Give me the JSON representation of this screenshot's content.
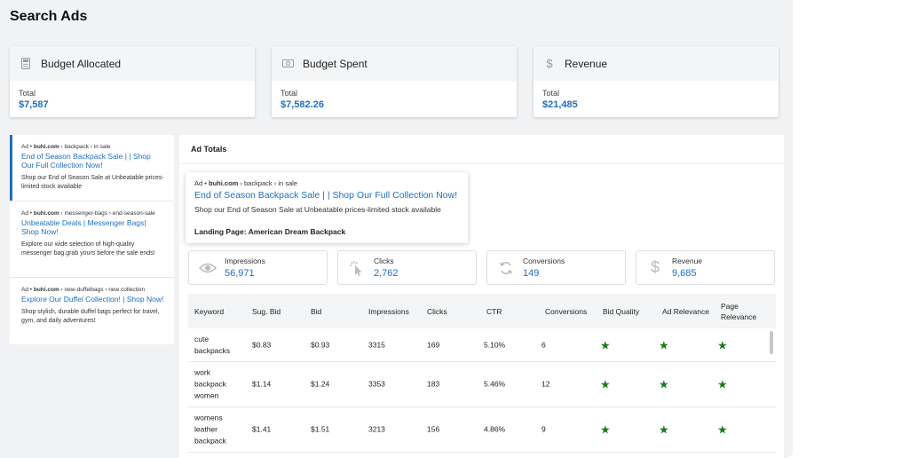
{
  "page": {
    "title": "Search Ads"
  },
  "stats": [
    {
      "icon": "calculator-icon",
      "label": "Budget Allocated",
      "sub": "Total",
      "value": "$7,587"
    },
    {
      "icon": "money-icon",
      "label": "Budget Spent",
      "sub": "Total",
      "value": "$7,582.26"
    },
    {
      "icon": "dollar-icon",
      "label": "Revenue",
      "sub": "Total",
      "value": "$21,485"
    }
  ],
  "ads": [
    {
      "ad": "Ad •",
      "domain": "buhi.com",
      "path": " › backpack › in sale",
      "headline": "End of Season Backpack Sale | | Shop Our Full Collection Now!",
      "desc": "Shop our End of Season Sale at Unbeatable prices-limited stock available"
    },
    {
      "ad": "Ad •",
      "domain": "buhi.com",
      "path": " › messenger-bags › end-season-sale",
      "headline": "Unbeatable Deals | Messenger Bags| Shop Now!",
      "desc": "Explore our wide selection of high-quality messenger bag.grab yours before the sale ends!"
    },
    {
      "ad": "Ad •",
      "domain": "buhi.com",
      "path": " › new-duffelbags › new collection",
      "headline": "Explore Our Duffel Collection! | Shop Now!",
      "desc": "Shop stylish, durable duffel bags perfect for travel, gym, and daily adventures!"
    }
  ],
  "totals": {
    "title": "Ad Totals",
    "preview": {
      "ad": "Ad •",
      "domain": "buhi.com",
      "path": " › backpack › in sale",
      "headline": "End of Season Backpack Sale | | Shop Our Full Collection Now!",
      "desc": "Shop our End of Season Sale at Unbeatable prices-limited stock available",
      "landing": "Landing Page: American Dream Backpack"
    },
    "metrics": [
      {
        "icon": "eye-icon",
        "label": "Impressions",
        "value": "56,971"
      },
      {
        "icon": "cursor-click-icon",
        "label": "Clicks",
        "value": "2,762"
      },
      {
        "icon": "refresh-icon",
        "label": "Conversions",
        "value": "149"
      },
      {
        "icon": "dollar-icon",
        "label": "Revenue",
        "value": "9,685"
      }
    ]
  },
  "table": {
    "headers": [
      "Keyword",
      "Sug. Bid",
      "Bid",
      "Impressions",
      "Clicks",
      "CTR",
      "Conversions",
      "Bid Quality",
      "Ad Relevance",
      "Page Relevance"
    ],
    "star_color": "#1a7a1a",
    "rows": [
      {
        "keyword": "cute backpacks",
        "sug_bid": "$0.83",
        "bid": "$0.93",
        "impressions": "3315",
        "clicks": "169",
        "ctr": "5.10%",
        "conversions": "6",
        "bid_quality": "★",
        "ad_relevance": "★",
        "page_relevance": "★"
      },
      {
        "keyword": "work backpack women",
        "sug_bid": "$1.14",
        "bid": "$1.24",
        "impressions": "3353",
        "clicks": "183",
        "ctr": "5.46%",
        "conversions": "12",
        "bid_quality": "★",
        "ad_relevance": "★",
        "page_relevance": "★"
      },
      {
        "keyword": "womens leather backpack",
        "sug_bid": "$1.41",
        "bid": "$1.51",
        "impressions": "3213",
        "clicks": "156",
        "ctr": "4.86%",
        "conversions": "9",
        "bid_quality": "★",
        "ad_relevance": "★",
        "page_relevance": "★"
      }
    ]
  }
}
